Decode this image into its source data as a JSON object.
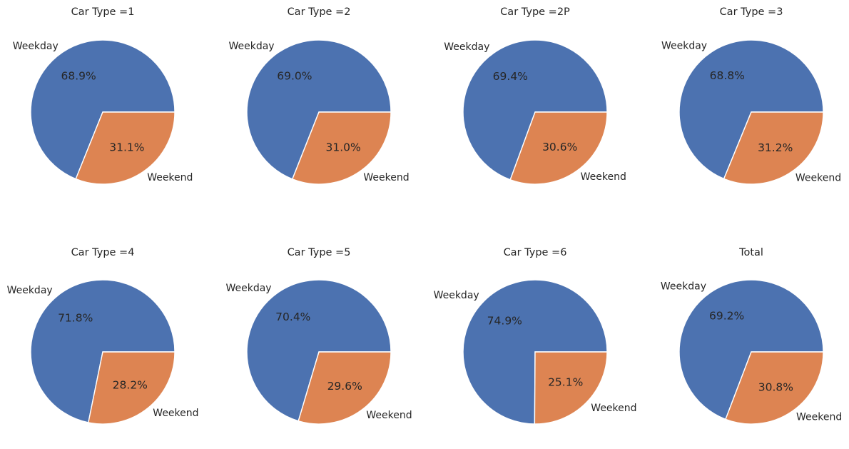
{
  "chart_data": [
    {
      "type": "pie",
      "title": "Car Type =1",
      "labels": [
        "Weekday",
        "Weekend"
      ],
      "values": [
        68.9,
        31.1
      ],
      "pct_labels": [
        "68.9%",
        "31.1%"
      ],
      "colors": [
        "#4c72b0",
        "#dd8452"
      ]
    },
    {
      "type": "pie",
      "title": "Car Type =2",
      "labels": [
        "Weekday",
        "Weekend"
      ],
      "values": [
        69.0,
        31.0
      ],
      "pct_labels": [
        "69.0%",
        "31.0%"
      ],
      "colors": [
        "#4c72b0",
        "#dd8452"
      ]
    },
    {
      "type": "pie",
      "title": "Car Type =2P",
      "labels": [
        "Weekday",
        "Weekend"
      ],
      "values": [
        69.4,
        30.6
      ],
      "pct_labels": [
        "69.4%",
        "30.6%"
      ],
      "colors": [
        "#4c72b0",
        "#dd8452"
      ]
    },
    {
      "type": "pie",
      "title": "Car Type =3",
      "labels": [
        "Weekday",
        "Weekend"
      ],
      "values": [
        68.8,
        31.2
      ],
      "pct_labels": [
        "68.8%",
        "31.2%"
      ],
      "colors": [
        "#4c72b0",
        "#dd8452"
      ]
    },
    {
      "type": "pie",
      "title": "Car Type =4",
      "labels": [
        "Weekday",
        "Weekend"
      ],
      "values": [
        71.8,
        28.2
      ],
      "pct_labels": [
        "71.8%",
        "28.2%"
      ],
      "colors": [
        "#4c72b0",
        "#dd8452"
      ]
    },
    {
      "type": "pie",
      "title": "Car Type =5",
      "labels": [
        "Weekday",
        "Weekend"
      ],
      "values": [
        70.4,
        29.6
      ],
      "pct_labels": [
        "70.4%",
        "29.6%"
      ],
      "colors": [
        "#4c72b0",
        "#dd8452"
      ]
    },
    {
      "type": "pie",
      "title": "Car Type =6",
      "labels": [
        "Weekday",
        "Weekend"
      ],
      "values": [
        74.9,
        25.1
      ],
      "pct_labels": [
        "74.9%",
        "25.1%"
      ],
      "colors": [
        "#4c72b0",
        "#dd8452"
      ]
    },
    {
      "type": "pie",
      "title": "Total",
      "labels": [
        "Weekday",
        "Weekend"
      ],
      "values": [
        69.2,
        30.8
      ],
      "pct_labels": [
        "69.2%",
        "30.8%"
      ],
      "colors": [
        "#4c72b0",
        "#dd8452"
      ]
    }
  ]
}
